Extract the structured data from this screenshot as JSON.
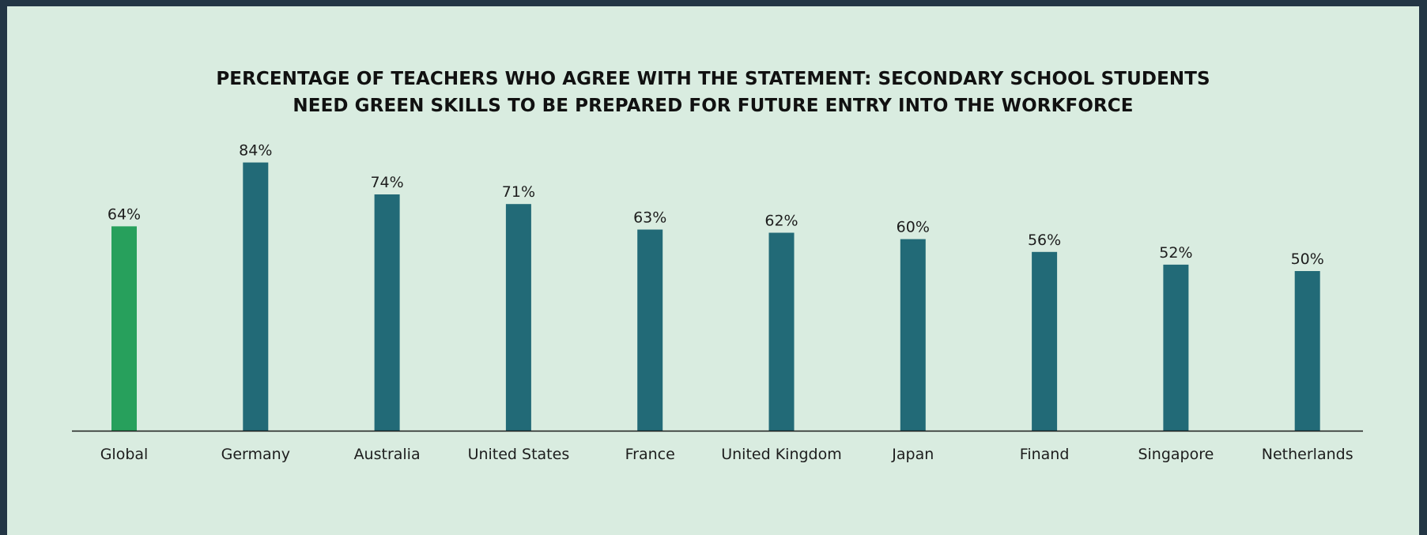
{
  "chart_data": {
    "type": "bar",
    "title_lines": [
      "PERCENTAGE OF TEACHERS WHO AGREE WITH THE STATEMENT: SECONDARY SCHOOL STUDENTS",
      "NEED GREEN SKILLS TO BE PREPARED FOR FUTURE ENTRY INTO THE WORKFORCE"
    ],
    "categories": [
      "Global",
      "Germany",
      "Australia",
      "United States",
      "France",
      "United Kingdom",
      "Japan",
      "Finand",
      "Singapore",
      "Netherlands"
    ],
    "values": [
      64,
      84,
      74,
      71,
      63,
      62,
      60,
      56,
      52,
      50
    ],
    "value_labels": [
      "64%",
      "84%",
      "74%",
      "71%",
      "63%",
      "62%",
      "60%",
      "56%",
      "52%",
      "50%"
    ],
    "unit": "%",
    "ylim": [
      0,
      100
    ],
    "grid": false,
    "legend": "none",
    "colors": {
      "highlight": "#27a05c",
      "bar": "#226a77",
      "axis": "#1b1b1b",
      "background": "#d9ece0",
      "frame": "#233645"
    },
    "highlight_category": "Global"
  }
}
